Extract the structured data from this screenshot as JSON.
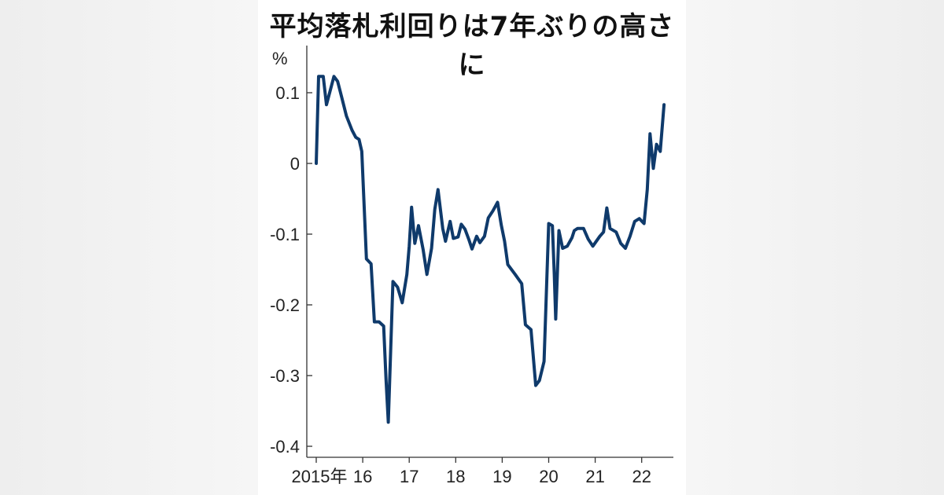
{
  "title": "平均落札利回りは7年ぶりの高さに",
  "chart_data": {
    "type": "line",
    "title": "平均落札利回りは7年ぶりの高さに",
    "ylabel": "%",
    "ylim": [
      -0.4,
      0.1
    ],
    "yticks": [
      {
        "value": 0.1,
        "label": "0.1"
      },
      {
        "value": 0,
        "label": "0"
      },
      {
        "value": -0.1,
        "label": "-0.1"
      },
      {
        "value": -0.2,
        "label": "-0.2"
      },
      {
        "value": -0.3,
        "label": "-0.3"
      },
      {
        "value": -0.4,
        "label": "-0.4"
      }
    ],
    "xlim": [
      2015.0,
      2022.6
    ],
    "xticks": [
      {
        "value": 2015,
        "label": "2015年"
      },
      {
        "value": 2016,
        "label": "16"
      },
      {
        "value": 2017,
        "label": "17"
      },
      {
        "value": 2018,
        "label": "18"
      },
      {
        "value": 2019,
        "label": "19"
      },
      {
        "value": 2020,
        "label": "20"
      },
      {
        "value": 2021,
        "label": "21"
      },
      {
        "value": 2022,
        "label": "22"
      }
    ],
    "grid": false,
    "series_color": "#0f3a6b",
    "points": [
      [
        2015.0,
        0.0
      ],
      [
        2015.05,
        0.123
      ],
      [
        2015.15,
        0.123
      ],
      [
        2015.22,
        0.083
      ],
      [
        2015.38,
        0.123
      ],
      [
        2015.46,
        0.116
      ],
      [
        2015.55,
        0.093
      ],
      [
        2015.65,
        0.067
      ],
      [
        2015.77,
        0.047
      ],
      [
        2015.85,
        0.037
      ],
      [
        2015.92,
        0.034
      ],
      [
        2015.98,
        0.017
      ],
      [
        2016.08,
        -0.135
      ],
      [
        2016.18,
        -0.142
      ],
      [
        2016.25,
        -0.224
      ],
      [
        2016.35,
        -0.224
      ],
      [
        2016.45,
        -0.23
      ],
      [
        2016.5,
        -0.305
      ],
      [
        2016.55,
        -0.366
      ],
      [
        2016.65,
        -0.167
      ],
      [
        2016.75,
        -0.175
      ],
      [
        2016.85,
        -0.197
      ],
      [
        2016.95,
        -0.157
      ],
      [
        2017.0,
        -0.117
      ],
      [
        2017.05,
        -0.062
      ],
      [
        2017.12,
        -0.113
      ],
      [
        2017.2,
        -0.088
      ],
      [
        2017.3,
        -0.122
      ],
      [
        2017.38,
        -0.157
      ],
      [
        2017.48,
        -0.12
      ],
      [
        2017.55,
        -0.065
      ],
      [
        2017.62,
        -0.037
      ],
      [
        2017.72,
        -0.092
      ],
      [
        2017.78,
        -0.11
      ],
      [
        2017.88,
        -0.082
      ],
      [
        2017.95,
        -0.106
      ],
      [
        2018.05,
        -0.104
      ],
      [
        2018.12,
        -0.086
      ],
      [
        2018.2,
        -0.093
      ],
      [
        2018.28,
        -0.107
      ],
      [
        2018.35,
        -0.121
      ],
      [
        2018.45,
        -0.103
      ],
      [
        2018.52,
        -0.112
      ],
      [
        2018.62,
        -0.103
      ],
      [
        2018.7,
        -0.077
      ],
      [
        2018.8,
        -0.067
      ],
      [
        2018.9,
        -0.055
      ],
      [
        2018.98,
        -0.087
      ],
      [
        2019.05,
        -0.11
      ],
      [
        2019.12,
        -0.143
      ],
      [
        2019.28,
        -0.157
      ],
      [
        2019.42,
        -0.17
      ],
      [
        2019.5,
        -0.228
      ],
      [
        2019.62,
        -0.235
      ],
      [
        2019.72,
        -0.314
      ],
      [
        2019.8,
        -0.307
      ],
      [
        2019.9,
        -0.28
      ],
      [
        2020.0,
        -0.085
      ],
      [
        2020.08,
        -0.088
      ],
      [
        2020.12,
        -0.157
      ],
      [
        2020.15,
        -0.22
      ],
      [
        2020.22,
        -0.095
      ],
      [
        2020.3,
        -0.12
      ],
      [
        2020.4,
        -0.117
      ],
      [
        2020.5,
        -0.105
      ],
      [
        2020.55,
        -0.095
      ],
      [
        2020.62,
        -0.092
      ],
      [
        2020.75,
        -0.092
      ],
      [
        2020.85,
        -0.107
      ],
      [
        2020.95,
        -0.117
      ],
      [
        2021.1,
        -0.103
      ],
      [
        2021.18,
        -0.097
      ],
      [
        2021.25,
        -0.063
      ],
      [
        2021.32,
        -0.092
      ],
      [
        2021.45,
        -0.097
      ],
      [
        2021.55,
        -0.113
      ],
      [
        2021.65,
        -0.12
      ],
      [
        2021.75,
        -0.103
      ],
      [
        2021.85,
        -0.082
      ],
      [
        2021.95,
        -0.078
      ],
      [
        2022.05,
        -0.085
      ],
      [
        2022.12,
        -0.037
      ],
      [
        2022.18,
        0.042
      ],
      [
        2022.25,
        -0.007
      ],
      [
        2022.32,
        0.027
      ],
      [
        2022.4,
        0.017
      ],
      [
        2022.48,
        0.083
      ]
    ]
  }
}
